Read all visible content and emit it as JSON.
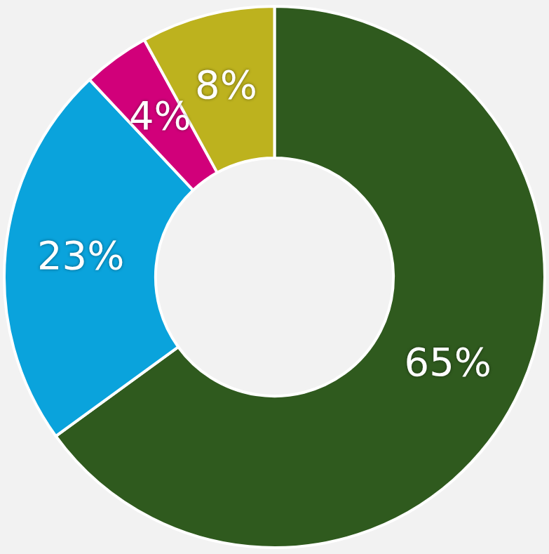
{
  "chart_data": {
    "type": "doughnut",
    "values": [
      65,
      23,
      4,
      8
    ],
    "value_labels": [
      "65%",
      "23%",
      "4%",
      "8%"
    ],
    "colors": [
      "#2f5a1e",
      "#0aa3dc",
      "#d1007a",
      "#bdb21e"
    ],
    "data_labels": true
  }
}
